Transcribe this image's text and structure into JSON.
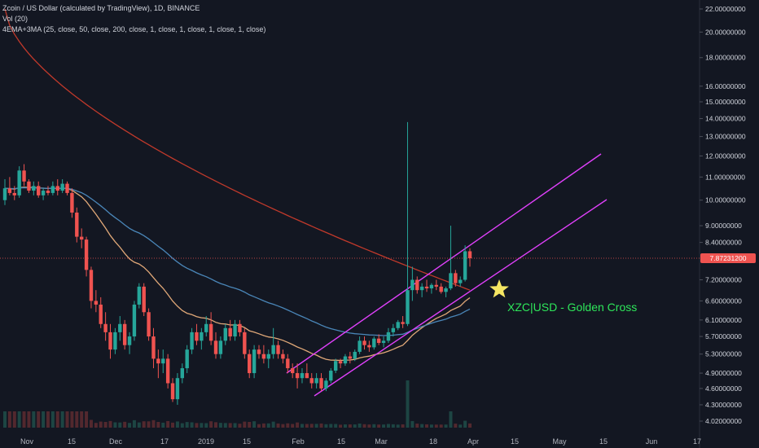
{
  "header": {
    "title": "Zcoin / US Dollar (calculated by TradingView), 1D, BINANCE",
    "volume_label": "Vol (20)",
    "indicator_label": "4EMA+3MA (25, close, 50, close, 200, close, 1, close, 1, close, 1, close, 1, close)"
  },
  "current_price": "7.87231200",
  "annotation": "XZC|USD - Golden Cross",
  "colors": {
    "background": "#131722",
    "up": "#26a69a",
    "down": "#ef5350",
    "ema25": "#e0a878",
    "ema50": "#4a86b8",
    "ema200": "#c0392b",
    "channel": "#e040fb",
    "annotation": "#2ee65a",
    "star": "#f5e663"
  },
  "chart_data": {
    "type": "candlestick",
    "y_scale": "log",
    "ylim": [
      3.95,
      22.5
    ],
    "y_ticks": [
      "22.00000000",
      "20.00000000",
      "18.00000000",
      "16.00000000",
      "15.00000000",
      "14.00000000",
      "13.00000000",
      "12.00000000",
      "11.00000000",
      "10.00000000",
      "9.00000000",
      "8.40000000",
      "7.20000000",
      "6.60000000",
      "6.10000000",
      "5.70000000",
      "5.30000000",
      "4.90000000",
      "4.60000000",
      "4.30000000",
      "4.02000000"
    ],
    "x_ticks": [
      "Nov",
      "15",
      "Dec",
      "17",
      "2019",
      "15",
      "Feb",
      "15",
      "Mar",
      "18",
      "Apr",
      "15",
      "May",
      "15",
      "Jun",
      "17"
    ],
    "grid": false,
    "series": [
      {
        "name": "Price",
        "kind": "candles"
      },
      {
        "name": "EMA 25",
        "kind": "line"
      },
      {
        "name": "EMA 50",
        "kind": "line"
      },
      {
        "name": "EMA 200",
        "kind": "line"
      },
      {
        "name": "Vol (20)",
        "kind": "volume"
      }
    ],
    "candles_ohlc": [
      [
        10.0,
        10.9,
        9.8,
        10.5
      ],
      [
        10.5,
        11.0,
        10.2,
        10.3
      ],
      [
        10.3,
        10.6,
        10.0,
        10.2
      ],
      [
        10.2,
        11.5,
        10.1,
        11.3
      ],
      [
        11.3,
        11.6,
        10.6,
        10.8
      ],
      [
        10.8,
        10.9,
        10.3,
        10.4
      ],
      [
        10.4,
        10.8,
        10.2,
        10.6
      ],
      [
        10.6,
        10.8,
        10.1,
        10.2
      ],
      [
        10.2,
        10.5,
        10.0,
        10.4
      ],
      [
        10.4,
        10.6,
        10.2,
        10.3
      ],
      [
        10.3,
        10.8,
        10.2,
        10.6
      ],
      [
        10.6,
        10.9,
        10.2,
        10.4
      ],
      [
        10.4,
        10.9,
        10.3,
        10.7
      ],
      [
        10.7,
        10.8,
        10.2,
        10.3
      ],
      [
        10.3,
        10.5,
        9.3,
        9.5
      ],
      [
        9.5,
        9.7,
        8.4,
        8.6
      ],
      [
        8.6,
        8.9,
        8.2,
        8.5
      ],
      [
        8.5,
        8.6,
        7.3,
        7.5
      ],
      [
        7.5,
        7.6,
        6.4,
        6.6
      ],
      [
        6.6,
        6.9,
        6.3,
        6.5
      ],
      [
        6.5,
        6.7,
        5.9,
        6.0
      ],
      [
        6.0,
        6.3,
        5.6,
        5.8
      ],
      [
        5.8,
        6.0,
        5.2,
        5.4
      ],
      [
        5.4,
        5.9,
        5.3,
        5.8
      ],
      [
        5.8,
        6.2,
        5.6,
        6.0
      ],
      [
        6.0,
        6.1,
        5.4,
        5.5
      ],
      [
        5.5,
        5.8,
        5.3,
        5.7
      ],
      [
        5.7,
        6.6,
        5.6,
        6.5
      ],
      [
        6.5,
        7.1,
        6.4,
        7.0
      ],
      [
        7.0,
        7.1,
        6.2,
        6.3
      ],
      [
        6.3,
        6.4,
        5.6,
        5.7
      ],
      [
        5.7,
        5.9,
        5.0,
        5.2
      ],
      [
        5.2,
        5.4,
        4.8,
        5.1
      ],
      [
        5.1,
        5.4,
        4.9,
        5.2
      ],
      [
        5.2,
        5.3,
        4.6,
        4.7
      ],
      [
        4.7,
        4.8,
        4.35,
        4.4
      ],
      [
        4.4,
        4.9,
        4.3,
        4.8
      ],
      [
        4.8,
        5.1,
        4.7,
        5.0
      ],
      [
        5.0,
        5.5,
        4.9,
        5.4
      ],
      [
        5.4,
        5.9,
        5.3,
        5.8
      ],
      [
        5.8,
        6.0,
        5.5,
        5.6
      ],
      [
        5.6,
        5.9,
        5.4,
        5.8
      ],
      [
        5.8,
        6.2,
        5.7,
        6.0
      ],
      [
        6.0,
        6.3,
        5.5,
        5.6
      ],
      [
        5.6,
        5.8,
        5.2,
        5.3
      ],
      [
        5.3,
        5.7,
        5.2,
        5.6
      ],
      [
        5.6,
        6.0,
        5.5,
        5.9
      ],
      [
        5.9,
        6.1,
        5.6,
        5.7
      ],
      [
        5.7,
        6.1,
        5.6,
        6.0
      ],
      [
        6.0,
        6.1,
        5.7,
        5.8
      ],
      [
        5.8,
        5.9,
        5.2,
        5.3
      ],
      [
        5.3,
        5.4,
        4.8,
        4.9
      ],
      [
        4.9,
        5.5,
        4.8,
        5.4
      ],
      [
        5.4,
        5.5,
        5.2,
        5.3
      ],
      [
        5.3,
        5.5,
        5.1,
        5.2
      ],
      [
        5.2,
        5.4,
        5.0,
        5.3
      ],
      [
        5.3,
        5.9,
        5.2,
        5.5
      ],
      [
        5.5,
        5.6,
        5.2,
        5.3
      ],
      [
        5.3,
        5.4,
        5.1,
        5.2
      ],
      [
        5.2,
        5.3,
        4.9,
        5.0
      ],
      [
        5.0,
        5.1,
        4.8,
        4.9
      ],
      [
        4.9,
        5.1,
        4.6,
        4.8
      ],
      [
        4.8,
        5.0,
        4.7,
        4.9
      ],
      [
        4.9,
        5.1,
        4.8,
        4.8
      ],
      [
        4.8,
        4.9,
        4.6,
        4.7
      ],
      [
        4.7,
        4.9,
        4.6,
        4.8
      ],
      [
        4.8,
        4.9,
        4.55,
        4.6
      ],
      [
        4.6,
        4.8,
        4.55,
        4.75
      ],
      [
        4.75,
        5.0,
        4.7,
        4.95
      ],
      [
        4.95,
        5.2,
        4.9,
        5.15
      ],
      [
        5.15,
        5.2,
        5.0,
        5.1
      ],
      [
        5.1,
        5.3,
        5.05,
        5.25
      ],
      [
        5.25,
        5.35,
        5.1,
        5.2
      ],
      [
        5.2,
        5.4,
        5.15,
        5.35
      ],
      [
        5.35,
        5.7,
        5.3,
        5.6
      ],
      [
        5.6,
        5.7,
        5.4,
        5.5
      ],
      [
        5.5,
        5.6,
        5.35,
        5.45
      ],
      [
        5.45,
        5.7,
        5.4,
        5.65
      ],
      [
        5.65,
        5.75,
        5.5,
        5.55
      ],
      [
        5.55,
        5.7,
        5.45,
        5.6
      ],
      [
        5.6,
        5.9,
        5.55,
        5.8
      ],
      [
        5.8,
        6.0,
        5.7,
        5.9
      ],
      [
        5.9,
        6.1,
        5.85,
        6.05
      ],
      [
        6.05,
        6.2,
        5.9,
        6.0
      ],
      [
        6.0,
        13.8,
        5.95,
        6.9
      ],
      [
        6.9,
        7.6,
        6.6,
        7.2
      ],
      [
        7.2,
        7.3,
        6.8,
        6.9
      ],
      [
        6.9,
        7.1,
        6.7,
        7.0
      ],
      [
        7.0,
        7.2,
        6.85,
        6.95
      ],
      [
        6.95,
        7.1,
        6.8,
        7.05
      ],
      [
        7.05,
        7.2,
        6.9,
        7.0
      ],
      [
        7.0,
        7.1,
        6.8,
        6.85
      ],
      [
        6.85,
        7.0,
        6.7,
        6.95
      ],
      [
        6.95,
        9.0,
        6.9,
        7.4
      ],
      [
        7.4,
        7.5,
        7.0,
        7.1
      ],
      [
        7.1,
        7.3,
        7.0,
        7.2
      ],
      [
        7.2,
        8.3,
        7.15,
        8.1
      ],
      [
        8.1,
        8.2,
        7.6,
        7.87
      ]
    ]
  }
}
